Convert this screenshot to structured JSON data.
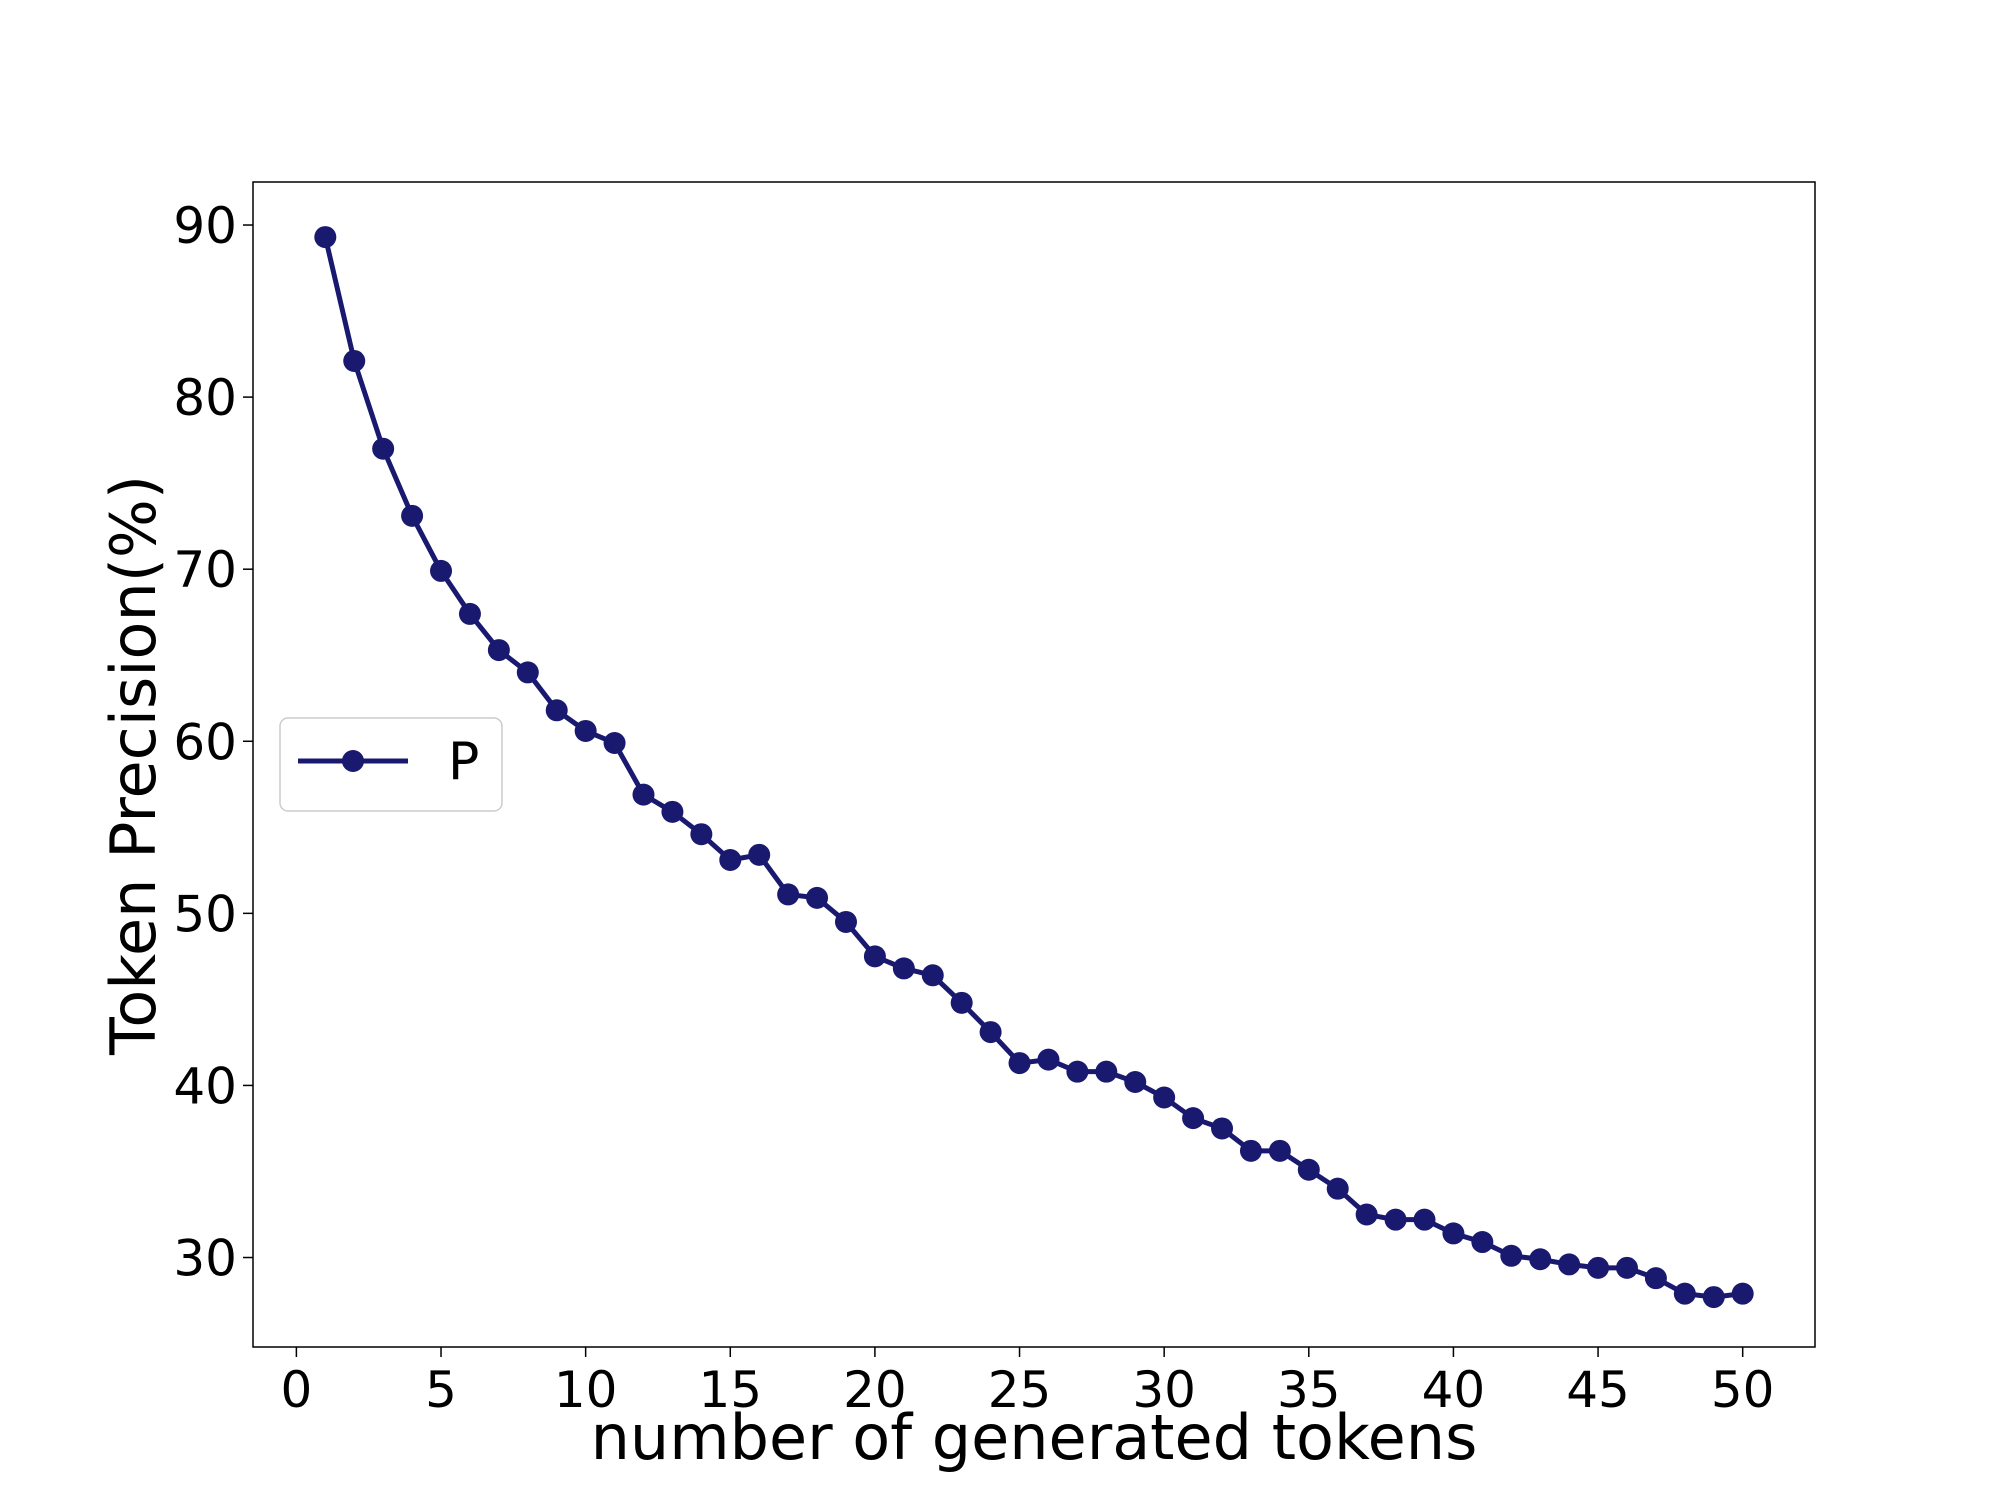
{
  "chart_data": {
    "type": "line",
    "xlabel": "number of generated tokens",
    "ylabel": "Token Precision(%)",
    "xlim": [
      -1.5,
      52.5
    ],
    "ylim": [
      24.8,
      92.5
    ],
    "xticks": [
      0,
      5,
      10,
      15,
      20,
      25,
      30,
      35,
      40,
      45,
      50
    ],
    "yticks": [
      30,
      40,
      50,
      60,
      70,
      80,
      90
    ],
    "grid": false,
    "legend_position": "center-left",
    "series": [
      {
        "name": "P",
        "color": "#191970",
        "marker": "circle",
        "x": [
          1,
          2,
          3,
          4,
          5,
          6,
          7,
          8,
          9,
          10,
          11,
          12,
          13,
          14,
          15,
          16,
          17,
          18,
          19,
          20,
          21,
          22,
          23,
          24,
          25,
          26,
          27,
          28,
          29,
          30,
          31,
          32,
          33,
          34,
          35,
          36,
          37,
          38,
          39,
          40,
          41,
          42,
          43,
          44,
          45,
          46,
          47,
          48,
          49,
          50
        ],
        "y": [
          89.3,
          82.1,
          77.0,
          73.1,
          69.9,
          67.4,
          65.3,
          64.0,
          61.8,
          60.6,
          59.9,
          56.9,
          55.9,
          54.6,
          53.1,
          53.4,
          51.1,
          50.9,
          49.5,
          47.5,
          46.8,
          46.4,
          44.8,
          43.1,
          41.3,
          41.5,
          40.8,
          40.8,
          40.2,
          39.3,
          38.1,
          37.5,
          36.2,
          36.2,
          35.1,
          34.0,
          32.5,
          32.2,
          32.2,
          31.4,
          30.9,
          30.1,
          29.9,
          29.6,
          29.4,
          29.4,
          28.8,
          27.9,
          27.7,
          27.9
        ]
      }
    ]
  }
}
